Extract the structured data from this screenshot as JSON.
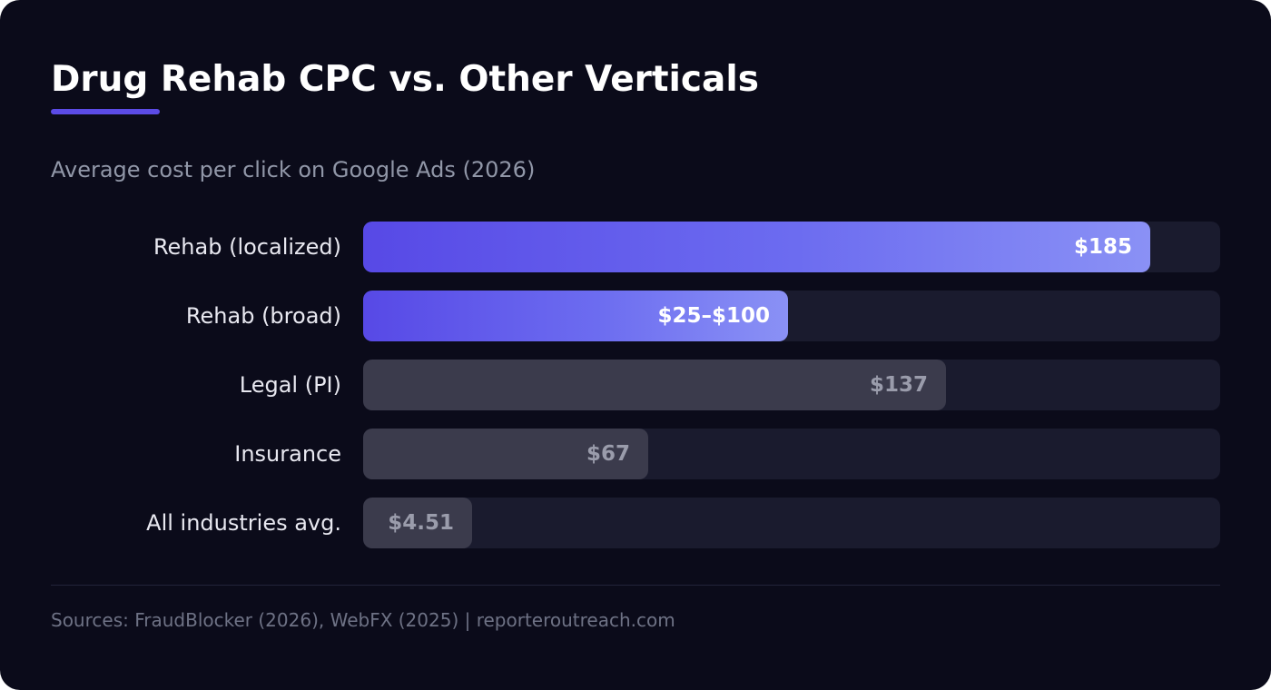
{
  "title": "Drug Rehab CPC vs. Other Verticals",
  "subtitle": "Average cost per click on Google Ads (2026)",
  "source": "Sources: FraudBlocker (2026), WebFX (2025) | reporteroutreach.com",
  "colors": {
    "background": "#0b0b1a",
    "accent": "#5b4be6",
    "highlight_gradient_start": "#5749e6",
    "highlight_gradient_end": "#8a91f5",
    "muted_bar": "#3b3b4c",
    "track": "#1a1b2e"
  },
  "chart_data": {
    "type": "bar",
    "orientation": "horizontal",
    "title": "Drug Rehab CPC vs. Other Verticals",
    "subtitle": "Average cost per click on Google Ads (2026)",
    "xlim": [
      0,
      201.5
    ],
    "grid": false,
    "legend": "none",
    "categories": [
      "Rehab (localized)",
      "Rehab (broad)",
      "Legal (PI)",
      "Insurance",
      "All industries avg."
    ],
    "values": [
      185,
      100,
      137,
      67,
      4.51
    ],
    "value_labels": [
      "$185",
      "$25–$100",
      "$137",
      "$67",
      "$4.51"
    ],
    "ranges": [
      null,
      [
        25,
        100
      ],
      null,
      null,
      null
    ],
    "highlighted": [
      true,
      true,
      false,
      false,
      false
    ]
  }
}
